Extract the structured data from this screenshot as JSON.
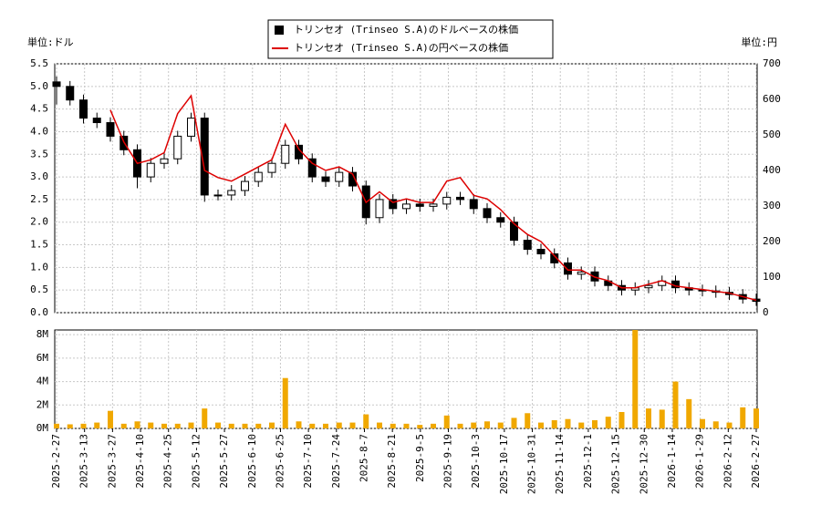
{
  "chart_data": [
    {
      "type": "candlestick",
      "y_unit_label": "単位:ドル",
      "y2_unit_label": "単位:円",
      "ylim": [
        0,
        5.5
      ],
      "yticks": [
        {
          "value": 0,
          "label": "0.0"
        },
        0.5,
        {
          "value": 1,
          "label": "1.0"
        },
        1.5,
        {
          "value": 2,
          "label": "2.0"
        },
        2.5,
        {
          "value": 3,
          "label": "3.0"
        },
        3.5,
        {
          "value": 4,
          "label": "4.0"
        },
        4.5,
        {
          "value": 5,
          "label": "5.0"
        },
        5.5
      ],
      "y2lim": [
        0,
        700
      ],
      "y2ticks": [
        0,
        100,
        200,
        300,
        400,
        500,
        600,
        700
      ],
      "grid": true,
      "legend": "top",
      "series": [
        {
          "name": "トリンセオ (Trinseo S.A)のドルベースの株価",
          "color": "#000000",
          "open": [
            5.1,
            5.0,
            4.7,
            4.3,
            4.2,
            3.9,
            3.6,
            3.0,
            3.3,
            3.4,
            3.9,
            4.3,
            2.6,
            2.6,
            2.7,
            2.9,
            3.1,
            3.3,
            3.7,
            3.4,
            3.0,
            2.9,
            3.1,
            2.8,
            2.1,
            2.5,
            2.3,
            2.4,
            2.35,
            2.4,
            2.55,
            2.5,
            2.3,
            2.1,
            2.0,
            1.6,
            1.4,
            1.3,
            1.1,
            0.85,
            0.9,
            0.7,
            0.6,
            0.5,
            0.55,
            0.6,
            0.7,
            0.55,
            0.5,
            0.48,
            0.45,
            0.4,
            0.3
          ],
          "high": [
            5.22,
            5.12,
            4.82,
            4.42,
            4.32,
            4.02,
            3.72,
            3.42,
            3.52,
            4.02,
            4.42,
            4.42,
            2.72,
            2.82,
            3.02,
            3.22,
            3.42,
            3.82,
            3.82,
            3.52,
            3.12,
            3.22,
            3.22,
            2.92,
            2.62,
            2.62,
            2.52,
            2.52,
            2.52,
            2.67,
            2.67,
            2.62,
            2.42,
            2.22,
            2.12,
            1.72,
            1.52,
            1.42,
            1.22,
            1.02,
            1.02,
            0.82,
            0.72,
            0.67,
            0.72,
            0.82,
            0.82,
            0.67,
            0.62,
            0.6,
            0.57,
            0.52,
            0.42
          ],
          "low": [
            4.6,
            4.58,
            4.18,
            4.08,
            3.78,
            3.48,
            2.75,
            2.88,
            3.18,
            3.28,
            3.78,
            2.45,
            2.48,
            2.48,
            2.58,
            2.78,
            2.98,
            3.18,
            3.28,
            2.88,
            2.78,
            2.78,
            2.68,
            1.95,
            1.98,
            2.18,
            2.18,
            2.23,
            2.23,
            2.28,
            2.38,
            2.18,
            1.98,
            1.88,
            1.48,
            1.28,
            1.18,
            0.98,
            0.73,
            0.73,
            0.58,
            0.48,
            0.38,
            0.38,
            0.43,
            0.48,
            0.43,
            0.38,
            0.36,
            0.33,
            0.28,
            0.2,
            0.15
          ],
          "close": [
            5.0,
            4.7,
            4.3,
            4.2,
            3.9,
            3.6,
            3.0,
            3.3,
            3.4,
            3.9,
            4.3,
            2.6,
            2.6,
            2.7,
            2.9,
            3.1,
            3.3,
            3.7,
            3.4,
            3.0,
            2.9,
            3.1,
            2.8,
            2.1,
            2.5,
            2.3,
            2.4,
            2.35,
            2.4,
            2.55,
            2.5,
            2.3,
            2.1,
            2.0,
            1.6,
            1.4,
            1.3,
            1.1,
            0.85,
            0.9,
            0.7,
            0.6,
            0.5,
            0.55,
            0.6,
            0.7,
            0.55,
            0.5,
            0.48,
            0.45,
            0.4,
            0.3,
            0.25
          ]
        },
        {
          "name": "トリンセオ (Trinseo S.A)の円ベースの株価",
          "color": "#dd0000",
          "axis": "y2",
          "values": [
            null,
            null,
            null,
            null,
            570,
            480,
            420,
            430,
            450,
            560,
            610,
            400,
            380,
            370,
            390,
            410,
            430,
            530,
            460,
            420,
            400,
            410,
            390,
            310,
            340,
            310,
            320,
            310,
            310,
            370,
            380,
            330,
            320,
            290,
            250,
            220,
            200,
            160,
            120,
            120,
            100,
            90,
            70,
            70,
            80,
            90,
            75,
            70,
            65,
            60,
            55,
            45,
            35
          ]
        }
      ]
    },
    {
      "type": "bar",
      "color": "#f0a800",
      "ylim": [
        0,
        8400000
      ],
      "yticks": [
        {
          "value": 0,
          "label": "0M"
        },
        {
          "value": 2000000,
          "label": "2M"
        },
        {
          "value": 4000000,
          "label": "4M"
        },
        {
          "value": 6000000,
          "label": "6M"
        },
        {
          "value": 8000000,
          "label": "8M"
        }
      ],
      "grid": true,
      "xticks": [
        "2025-2-27",
        "2025-3-13",
        "2025-3-27",
        "2025-4-10",
        "2025-4-25",
        "2025-5-12",
        "2025-5-27",
        "2025-6-10",
        "2025-6-25",
        "2025-7-10",
        "2025-7-24",
        "2025-8-7",
        "2025-8-21",
        "2025-9-5",
        "2025-9-19",
        "2025-10-3",
        "2025-10-17",
        "2025-10-31",
        "2025-11-14",
        "2025-12-1",
        "2025-12-15",
        "2025-12-30",
        "2026-1-14",
        "2026-1-29",
        "2026-2-12",
        "2026-2-27"
      ],
      "values": [
        400000,
        350000,
        400000,
        500000,
        1500000,
        400000,
        600000,
        500000,
        400000,
        400000,
        500000,
        1700000,
        500000,
        400000,
        400000,
        400000,
        500000,
        4300000,
        600000,
        400000,
        400000,
        500000,
        500000,
        1200000,
        500000,
        400000,
        400000,
        300000,
        400000,
        1100000,
        400000,
        500000,
        600000,
        500000,
        900000,
        1300000,
        500000,
        700000,
        800000,
        500000,
        700000,
        1000000,
        1400000,
        8400000,
        1700000,
        1600000,
        4000000,
        2500000,
        800000,
        600000,
        500000,
        1800000,
        1700000
      ]
    }
  ]
}
